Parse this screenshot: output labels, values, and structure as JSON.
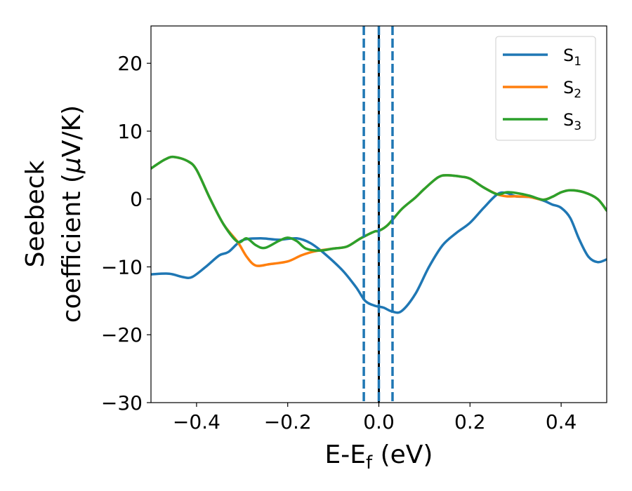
{
  "chart_data": {
    "type": "line",
    "xlabel": {
      "main": "E-E",
      "sub": "f",
      "unit": " (eV)"
    },
    "ylabel": {
      "line1": "Seebeck",
      "line2_prefix": "coefficient  (",
      "mu": "μ",
      "line2_suffix": "V/K)"
    },
    "xlim": [
      -0.5,
      0.5
    ],
    "ylim": [
      -30,
      25.5
    ],
    "xticks": [
      -0.4,
      -0.2,
      0.0,
      0.2,
      0.4
    ],
    "xtick_labels": [
      "−0.4",
      "−0.2",
      "0.0",
      "0.2",
      "0.4"
    ],
    "yticks": [
      -30,
      -20,
      -10,
      0,
      10,
      20
    ],
    "ytick_labels": [
      "−30",
      "−20",
      "−10",
      "0",
      "10",
      "20"
    ],
    "grid": false,
    "legend_position": "top-right",
    "vertical_lines": [
      {
        "x": 0.0,
        "style": "solid",
        "color": "#000000"
      },
      {
        "x": -0.033,
        "style": "dashed",
        "color": "#1f77b4"
      },
      {
        "x": 0.0,
        "style": "dashed",
        "color": "#1f77b4"
      },
      {
        "x": 0.03,
        "style": "dashed",
        "color": "#1f77b4"
      }
    ],
    "series": [
      {
        "name": "S",
        "sub": "1",
        "color": "#1f77b4",
        "points": [
          [
            -0.5,
            -11.1
          ],
          [
            -0.46,
            -11.0
          ],
          [
            -0.43,
            -11.5
          ],
          [
            -0.41,
            -11.5
          ],
          [
            -0.38,
            -10.0
          ],
          [
            -0.35,
            -8.3
          ],
          [
            -0.33,
            -7.8
          ],
          [
            -0.3,
            -6.1
          ],
          [
            -0.26,
            -5.8
          ],
          [
            -0.22,
            -6.0
          ],
          [
            -0.18,
            -5.8
          ],
          [
            -0.15,
            -6.5
          ],
          [
            -0.12,
            -8.0
          ],
          [
            -0.08,
            -10.5
          ],
          [
            -0.05,
            -13.0
          ],
          [
            -0.03,
            -15.0
          ],
          [
            -0.01,
            -15.7
          ],
          [
            0.01,
            -16.0
          ],
          [
            0.03,
            -16.6
          ],
          [
            0.05,
            -16.5
          ],
          [
            0.08,
            -14.0
          ],
          [
            0.11,
            -10.0
          ],
          [
            0.14,
            -6.8
          ],
          [
            0.17,
            -5.0
          ],
          [
            0.2,
            -3.5
          ],
          [
            0.23,
            -1.3
          ],
          [
            0.26,
            0.7
          ],
          [
            0.28,
            0.9
          ],
          [
            0.3,
            0.4
          ],
          [
            0.33,
            0.3
          ],
          [
            0.36,
            -0.2
          ],
          [
            0.38,
            -0.8
          ],
          [
            0.4,
            -1.3
          ],
          [
            0.42,
            -2.8
          ],
          [
            0.44,
            -6.0
          ],
          [
            0.46,
            -8.5
          ],
          [
            0.48,
            -9.3
          ],
          [
            0.5,
            -8.9
          ]
        ]
      },
      {
        "name": "S",
        "sub": "2",
        "color": "#ff7f0e",
        "points": [
          [
            -0.5,
            4.5
          ],
          [
            -0.47,
            5.8
          ],
          [
            -0.45,
            6.2
          ],
          [
            -0.42,
            5.6
          ],
          [
            -0.4,
            4.3
          ],
          [
            -0.37,
            0.0
          ],
          [
            -0.34,
            -3.8
          ],
          [
            -0.31,
            -6.3
          ],
          [
            -0.29,
            -8.5
          ],
          [
            -0.27,
            -9.8
          ],
          [
            -0.24,
            -9.6
          ],
          [
            -0.2,
            -9.2
          ],
          [
            -0.17,
            -8.3
          ],
          [
            -0.14,
            -7.7
          ],
          [
            -0.1,
            -7.3
          ],
          [
            -0.07,
            -7.0
          ],
          [
            -0.04,
            -5.8
          ],
          [
            -0.01,
            -4.8
          ],
          [
            0.0,
            -4.7
          ],
          [
            0.02,
            -3.8
          ],
          [
            0.05,
            -1.5
          ],
          [
            0.08,
            0.2
          ],
          [
            0.1,
            1.5
          ],
          [
            0.13,
            3.2
          ],
          [
            0.15,
            3.5
          ],
          [
            0.18,
            3.3
          ],
          [
            0.2,
            3.0
          ],
          [
            0.23,
            1.7
          ],
          [
            0.26,
            0.7
          ],
          [
            0.28,
            0.4
          ],
          [
            0.3,
            0.4
          ],
          [
            0.33,
            0.3
          ],
          [
            0.36,
            -0.1
          ],
          [
            0.38,
            0.3
          ],
          [
            0.4,
            1.0
          ],
          [
            0.42,
            1.3
          ],
          [
            0.45,
            1.0
          ],
          [
            0.48,
            0.0
          ],
          [
            0.5,
            -1.7
          ]
        ]
      },
      {
        "name": "S",
        "sub": "3",
        "color": "#2ca02c",
        "points": [
          [
            -0.5,
            4.5
          ],
          [
            -0.47,
            5.8
          ],
          [
            -0.45,
            6.2
          ],
          [
            -0.42,
            5.6
          ],
          [
            -0.4,
            4.3
          ],
          [
            -0.37,
            0.0
          ],
          [
            -0.34,
            -3.8
          ],
          [
            -0.31,
            -6.3
          ],
          [
            -0.29,
            -5.8
          ],
          [
            -0.27,
            -6.8
          ],
          [
            -0.25,
            -7.2
          ],
          [
            -0.22,
            -6.2
          ],
          [
            -0.2,
            -5.7
          ],
          [
            -0.18,
            -6.2
          ],
          [
            -0.16,
            -7.3
          ],
          [
            -0.13,
            -7.6
          ],
          [
            -0.1,
            -7.3
          ],
          [
            -0.07,
            -7.0
          ],
          [
            -0.04,
            -5.8
          ],
          [
            -0.01,
            -4.8
          ],
          [
            0.0,
            -4.7
          ],
          [
            0.02,
            -3.8
          ],
          [
            0.05,
            -1.5
          ],
          [
            0.08,
            0.2
          ],
          [
            0.1,
            1.5
          ],
          [
            0.13,
            3.2
          ],
          [
            0.15,
            3.5
          ],
          [
            0.18,
            3.3
          ],
          [
            0.2,
            3.0
          ],
          [
            0.23,
            1.7
          ],
          [
            0.26,
            0.7
          ],
          [
            0.28,
            1.0
          ],
          [
            0.3,
            0.9
          ],
          [
            0.33,
            0.5
          ],
          [
            0.36,
            -0.1
          ],
          [
            0.38,
            0.3
          ],
          [
            0.4,
            1.0
          ],
          [
            0.42,
            1.3
          ],
          [
            0.45,
            1.0
          ],
          [
            0.48,
            0.0
          ],
          [
            0.5,
            -1.7
          ]
        ]
      }
    ]
  }
}
